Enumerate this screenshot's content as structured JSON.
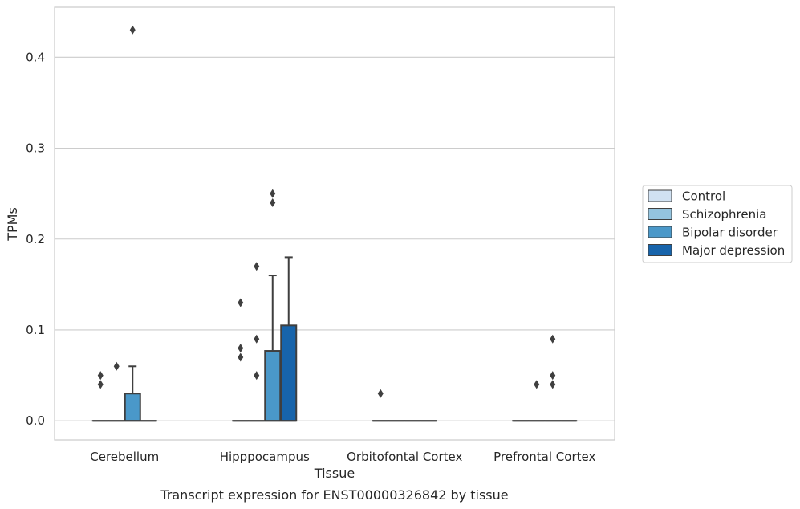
{
  "chart_data": {
    "type": "box",
    "title": "",
    "caption": "Transcript expression for ENST00000326842 by tissue",
    "xlabel": "Tissue",
    "ylabel": "TPMs",
    "ylim": [
      -0.021,
      0.455
    ],
    "yticks": [
      0.0,
      0.1,
      0.2,
      0.3,
      0.4
    ],
    "ytick_labels": [
      "0.0",
      "0.1",
      "0.2",
      "0.3",
      "0.4"
    ],
    "grid": "horizontal",
    "legend_position": "right",
    "categories": [
      "Cerebellum",
      "Hipppocampus",
      "Orbitofontal Cortex",
      "Prefrontal Cortex"
    ],
    "series": [
      {
        "name": "Control",
        "color": "#d0e1f2",
        "boxes": [
          {
            "q1": 0,
            "median": 0,
            "q3": 0,
            "whisker_low": 0,
            "whisker_high": 0,
            "outliers": [
              0.04,
              0.05
            ]
          },
          {
            "q1": 0,
            "median": 0,
            "q3": 0,
            "whisker_low": 0,
            "whisker_high": 0,
            "outliers": [
              0.07,
              0.08,
              0.13
            ]
          },
          {
            "q1": 0,
            "median": 0,
            "q3": 0,
            "whisker_low": 0,
            "whisker_high": 0,
            "outliers": [
              0.03
            ]
          },
          {
            "q1": 0,
            "median": 0,
            "q3": 0,
            "whisker_low": 0,
            "whisker_high": 0,
            "outliers": []
          }
        ]
      },
      {
        "name": "Schizophrenia",
        "color": "#94c4df",
        "boxes": [
          {
            "q1": 0,
            "median": 0,
            "q3": 0,
            "whisker_low": 0,
            "whisker_high": 0,
            "outliers": [
              0.06
            ]
          },
          {
            "q1": 0,
            "median": 0,
            "q3": 0,
            "whisker_low": 0,
            "whisker_high": 0,
            "outliers": [
              0.05,
              0.09,
              0.17
            ]
          },
          {
            "q1": 0,
            "median": 0,
            "q3": 0,
            "whisker_low": 0,
            "whisker_high": 0,
            "outliers": []
          },
          {
            "q1": 0,
            "median": 0,
            "q3": 0,
            "whisker_low": 0,
            "whisker_high": 0,
            "outliers": [
              0.04
            ]
          }
        ]
      },
      {
        "name": "Bipolar disorder",
        "color": "#4a98c9",
        "boxes": [
          {
            "q1": 0,
            "median": 0,
            "q3": 0.03,
            "whisker_low": 0,
            "whisker_high": 0.06,
            "outliers": [
              0.43
            ]
          },
          {
            "q1": 0,
            "median": 0,
            "q3": 0.077,
            "whisker_low": 0,
            "whisker_high": 0.16,
            "outliers": [
              0.24,
              0.25
            ]
          },
          {
            "q1": 0,
            "median": 0,
            "q3": 0,
            "whisker_low": 0,
            "whisker_high": 0,
            "outliers": []
          },
          {
            "q1": 0,
            "median": 0,
            "q3": 0,
            "whisker_low": 0,
            "whisker_high": 0,
            "outliers": [
              0.04,
              0.05,
              0.09
            ]
          }
        ]
      },
      {
        "name": "Major depression",
        "color": "#1764ab",
        "boxes": [
          {
            "q1": 0,
            "median": 0,
            "q3": 0,
            "whisker_low": 0,
            "whisker_high": 0,
            "outliers": []
          },
          {
            "q1": 0,
            "median": 0,
            "q3": 0.105,
            "whisker_low": 0,
            "whisker_high": 0.18,
            "outliers": []
          },
          {
            "q1": 0,
            "median": 0,
            "q3": 0,
            "whisker_low": 0,
            "whisker_high": 0,
            "outliers": []
          },
          {
            "q1": 0,
            "median": 0,
            "q3": 0,
            "whisker_low": 0,
            "whisker_high": 0,
            "outliers": []
          }
        ]
      }
    ]
  }
}
